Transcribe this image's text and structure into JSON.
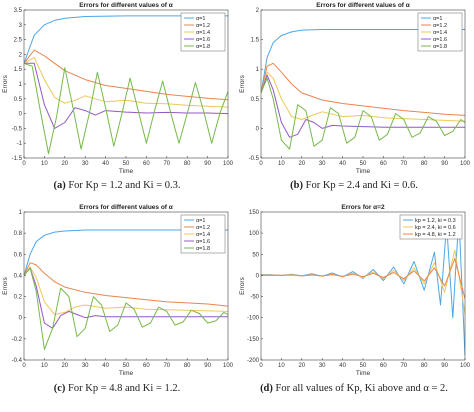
{
  "colors": {
    "s1": "#4DA6E8",
    "s2": "#E8854F",
    "s3": "#EDC85B",
    "s4": "#9457C8",
    "s5": "#77B94B"
  },
  "captions": [
    {
      "tag": "(a)",
      "text": "For Kp = 1.2 and Ki = 0.3."
    },
    {
      "tag": "(b)",
      "text": "For Kp = 2.4 and Ki = 0.6."
    },
    {
      "tag": "(c)",
      "text": "For Kp = 4.8 and Ki = 1.2."
    },
    {
      "tag": "(d)",
      "text": "For all values of Kp, Ki above and α = 2."
    }
  ],
  "chart_data": [
    {
      "type": "line",
      "title": "Errors for different values of α",
      "xlabel": "Time",
      "ylabel": "Errors",
      "xlim": [
        0,
        100
      ],
      "ylim": [
        -1.5,
        3.5
      ],
      "xticks": [
        0,
        10,
        20,
        30,
        40,
        50,
        60,
        70,
        80,
        90,
        100
      ],
      "yticks": [
        -1.5,
        -1,
        -0.5,
        0,
        0.5,
        1,
        1.5,
        2,
        2.5,
        3,
        3.5
      ],
      "legend_position": "top-right",
      "grid": false,
      "series": [
        {
          "name": "α=1",
          "color_key": "s1",
          "x": [
            0,
            5,
            10,
            15,
            20,
            30,
            50,
            100
          ],
          "y": [
            1.7,
            2.65,
            3.0,
            3.15,
            3.22,
            3.28,
            3.3,
            3.3
          ]
        },
        {
          "name": "α=1.2",
          "color_key": "s2",
          "x": [
            0,
            5,
            10,
            15,
            20,
            30,
            40,
            50,
            60,
            70,
            80,
            90,
            100
          ],
          "y": [
            1.7,
            2.15,
            1.95,
            1.7,
            1.45,
            1.15,
            0.95,
            0.85,
            0.75,
            0.65,
            0.58,
            0.52,
            0.47
          ]
        },
        {
          "name": "α=1.4",
          "color_key": "s3",
          "x": [
            0,
            5,
            10,
            15,
            20,
            25,
            30,
            40,
            50,
            60,
            70,
            80,
            90,
            100
          ],
          "y": [
            1.7,
            1.9,
            1.15,
            0.55,
            0.35,
            0.45,
            0.6,
            0.4,
            0.45,
            0.35,
            0.33,
            0.28,
            0.25,
            0.22
          ]
        },
        {
          "name": "α=1.6",
          "color_key": "s4",
          "x": [
            0,
            5,
            10,
            15,
            20,
            25,
            30,
            35,
            40,
            50,
            60,
            70,
            80,
            90,
            100
          ],
          "y": [
            1.7,
            1.7,
            0.3,
            -0.5,
            -0.3,
            0.2,
            0.1,
            -0.05,
            0.1,
            0.05,
            0.02,
            0.04,
            0.02,
            0.02,
            0.0
          ]
        },
        {
          "name": "α=1.8",
          "color_key": "s5",
          "x": [
            0,
            4,
            8,
            12,
            16,
            20,
            24,
            28,
            32,
            36,
            40,
            44,
            48,
            52,
            56,
            60,
            64,
            68,
            72,
            76,
            80,
            84,
            88,
            92,
            96,
            100
          ],
          "y": [
            1.7,
            1.6,
            0.1,
            -1.35,
            -0.1,
            1.55,
            0.2,
            -1.2,
            0.0,
            1.4,
            0.2,
            -1.1,
            0.0,
            1.2,
            0.1,
            -1.0,
            0.1,
            1.1,
            0.0,
            -1.0,
            0.0,
            1.05,
            0.1,
            -1.0,
            0.0,
            0.75
          ]
        }
      ]
    },
    {
      "type": "line",
      "title": "Errors for different values of α",
      "xlabel": "Time",
      "ylabel": "Errors",
      "xlim": [
        0,
        100
      ],
      "ylim": [
        -0.5,
        2
      ],
      "xticks": [
        0,
        10,
        20,
        30,
        40,
        50,
        60,
        70,
        80,
        90,
        100
      ],
      "yticks": [
        -0.5,
        0,
        0.5,
        1,
        1.5,
        2
      ],
      "legend_position": "top-right",
      "grid": false,
      "series": [
        {
          "name": "α=1",
          "color_key": "s1",
          "x": [
            0,
            3,
            6,
            10,
            15,
            20,
            30,
            50,
            100
          ],
          "y": [
            0.6,
            1.2,
            1.45,
            1.57,
            1.63,
            1.66,
            1.67,
            1.67,
            1.67
          ]
        },
        {
          "name": "α=1.2",
          "color_key": "s2",
          "x": [
            0,
            3,
            6,
            10,
            15,
            20,
            30,
            40,
            50,
            60,
            70,
            80,
            90,
            100
          ],
          "y": [
            0.6,
            1.05,
            1.1,
            0.95,
            0.75,
            0.6,
            0.48,
            0.42,
            0.38,
            0.34,
            0.3,
            0.27,
            0.24,
            0.22
          ]
        },
        {
          "name": "α=1.4",
          "color_key": "s3",
          "x": [
            0,
            3,
            6,
            10,
            15,
            20,
            25,
            30,
            40,
            50,
            60,
            80,
            100
          ],
          "y": [
            0.6,
            0.95,
            0.85,
            0.5,
            0.2,
            0.15,
            0.22,
            0.28,
            0.2,
            0.22,
            0.18,
            0.15,
            0.12
          ]
        },
        {
          "name": "α=1.6",
          "color_key": "s4",
          "x": [
            0,
            3,
            6,
            10,
            14,
            18,
            22,
            26,
            30,
            35,
            40,
            50,
            60,
            80,
            100
          ],
          "y": [
            0.6,
            0.9,
            0.65,
            0.1,
            -0.15,
            -0.1,
            0.15,
            0.1,
            0.0,
            0.05,
            0.04,
            0.03,
            0.02,
            0.02,
            0.02
          ]
        },
        {
          "name": "α=1.8",
          "color_key": "s5",
          "x": [
            0,
            3,
            6,
            10,
            14,
            18,
            22,
            26,
            30,
            34,
            38,
            42,
            46,
            50,
            54,
            58,
            62,
            66,
            70,
            74,
            78,
            82,
            86,
            90,
            94,
            98,
            100
          ],
          "y": [
            0.6,
            0.85,
            0.5,
            -0.2,
            -0.35,
            0.4,
            0.3,
            -0.3,
            -0.2,
            0.35,
            0.25,
            -0.25,
            -0.15,
            0.3,
            0.2,
            -0.2,
            -0.1,
            0.25,
            0.15,
            -0.15,
            -0.08,
            0.2,
            0.12,
            -0.12,
            -0.05,
            0.15,
            0.1
          ]
        }
      ]
    },
    {
      "type": "line",
      "title": "Errors for different values of α",
      "xlabel": "Time",
      "ylabel": "Errors",
      "xlim": [
        0,
        100
      ],
      "ylim": [
        -0.4,
        1
      ],
      "xticks": [
        0,
        10,
        20,
        30,
        40,
        50,
        60,
        70,
        80,
        90,
        100
      ],
      "yticks": [
        -0.4,
        -0.2,
        0,
        0.2,
        0.4,
        0.6,
        0.8,
        1
      ],
      "legend_position": "top-right",
      "grid": false,
      "series": [
        {
          "name": "α=1",
          "color_key": "s1",
          "x": [
            0,
            3,
            6,
            10,
            15,
            20,
            30,
            50,
            100
          ],
          "y": [
            0.4,
            0.6,
            0.72,
            0.78,
            0.81,
            0.82,
            0.83,
            0.83,
            0.83
          ]
        },
        {
          "name": "α=1.2",
          "color_key": "s2",
          "x": [
            0,
            3,
            6,
            10,
            15,
            20,
            30,
            40,
            50,
            60,
            70,
            80,
            90,
            100
          ],
          "y": [
            0.4,
            0.52,
            0.5,
            0.42,
            0.34,
            0.29,
            0.24,
            0.21,
            0.19,
            0.17,
            0.15,
            0.14,
            0.13,
            0.11
          ]
        },
        {
          "name": "α=1.4",
          "color_key": "s3",
          "x": [
            0,
            3,
            6,
            10,
            15,
            20,
            25,
            30,
            40,
            50,
            60,
            80,
            100
          ],
          "y": [
            0.4,
            0.48,
            0.38,
            0.15,
            0.03,
            0.05,
            0.1,
            0.12,
            0.09,
            0.1,
            0.08,
            0.07,
            0.06
          ]
        },
        {
          "name": "α=1.6",
          "color_key": "s4",
          "x": [
            0,
            3,
            6,
            10,
            14,
            18,
            22,
            26,
            30,
            35,
            40,
            50,
            60,
            80,
            100
          ],
          "y": [
            0.4,
            0.47,
            0.3,
            -0.05,
            -0.1,
            0.02,
            0.06,
            0.03,
            0.0,
            0.02,
            0.01,
            0.01,
            0.01,
            0.01,
            0.01
          ]
        },
        {
          "name": "α=1.8",
          "color_key": "s5",
          "x": [
            0,
            3,
            6,
            10,
            14,
            18,
            22,
            26,
            30,
            34,
            38,
            42,
            46,
            50,
            54,
            58,
            62,
            66,
            70,
            74,
            78,
            82,
            86,
            90,
            94,
            98,
            100
          ],
          "y": [
            0.4,
            0.47,
            0.25,
            -0.3,
            -0.1,
            0.28,
            0.2,
            -0.18,
            -0.1,
            0.2,
            0.12,
            -0.13,
            -0.07,
            0.14,
            0.08,
            -0.09,
            -0.05,
            0.1,
            0.06,
            -0.07,
            -0.04,
            0.07,
            0.04,
            -0.05,
            -0.03,
            0.05,
            0.03
          ]
        }
      ]
    },
    {
      "type": "line",
      "title": "Errors for α=2",
      "xlabel": "Time",
      "ylabel": "Errors",
      "xlim": [
        0,
        100
      ],
      "ylim": [
        -200,
        150
      ],
      "xticks": [
        0,
        10,
        20,
        30,
        40,
        50,
        60,
        70,
        80,
        90,
        100
      ],
      "yticks": [
        -200,
        -150,
        -100,
        -50,
        0,
        50,
        100,
        150
      ],
      "legend_position": "top-right",
      "grid": false,
      "series": [
        {
          "name": "kp = 1.2, ki = 0.3",
          "color_key": "s1",
          "x": [
            0,
            5,
            10,
            15,
            20,
            25,
            30,
            35,
            40,
            45,
            50,
            55,
            60,
            65,
            70,
            75,
            80,
            85,
            88,
            91,
            94,
            97,
            100
          ],
          "y": [
            2,
            2,
            0,
            3,
            -1,
            4,
            -2,
            6,
            -4,
            9,
            -7,
            14,
            -12,
            20,
            -20,
            33,
            -35,
            55,
            -70,
            120,
            -100,
            140,
            -190
          ]
        },
        {
          "name": "kp = 2.4, ki = 0.6",
          "color_key": "s3",
          "x": [
            0,
            5,
            10,
            15,
            20,
            25,
            30,
            35,
            40,
            45,
            50,
            55,
            60,
            65,
            70,
            75,
            80,
            85,
            90,
            95,
            100
          ],
          "y": [
            1,
            1,
            0,
            2,
            -1,
            2,
            -2,
            3,
            -3,
            5,
            -5,
            8,
            -8,
            12,
            -12,
            18,
            -20,
            30,
            -40,
            60,
            -90
          ]
        },
        {
          "name": "kp = 4.8, ki = 1.2",
          "color_key": "s2",
          "x": [
            0,
            5,
            10,
            15,
            20,
            25,
            30,
            35,
            40,
            45,
            50,
            55,
            60,
            65,
            70,
            75,
            80,
            85,
            90,
            95,
            100
          ],
          "y": [
            0,
            0,
            0,
            1,
            -1,
            1,
            -1,
            2,
            -2,
            3,
            -3,
            5,
            -5,
            7,
            -8,
            11,
            -13,
            18,
            -25,
            40,
            -55
          ]
        }
      ]
    }
  ]
}
